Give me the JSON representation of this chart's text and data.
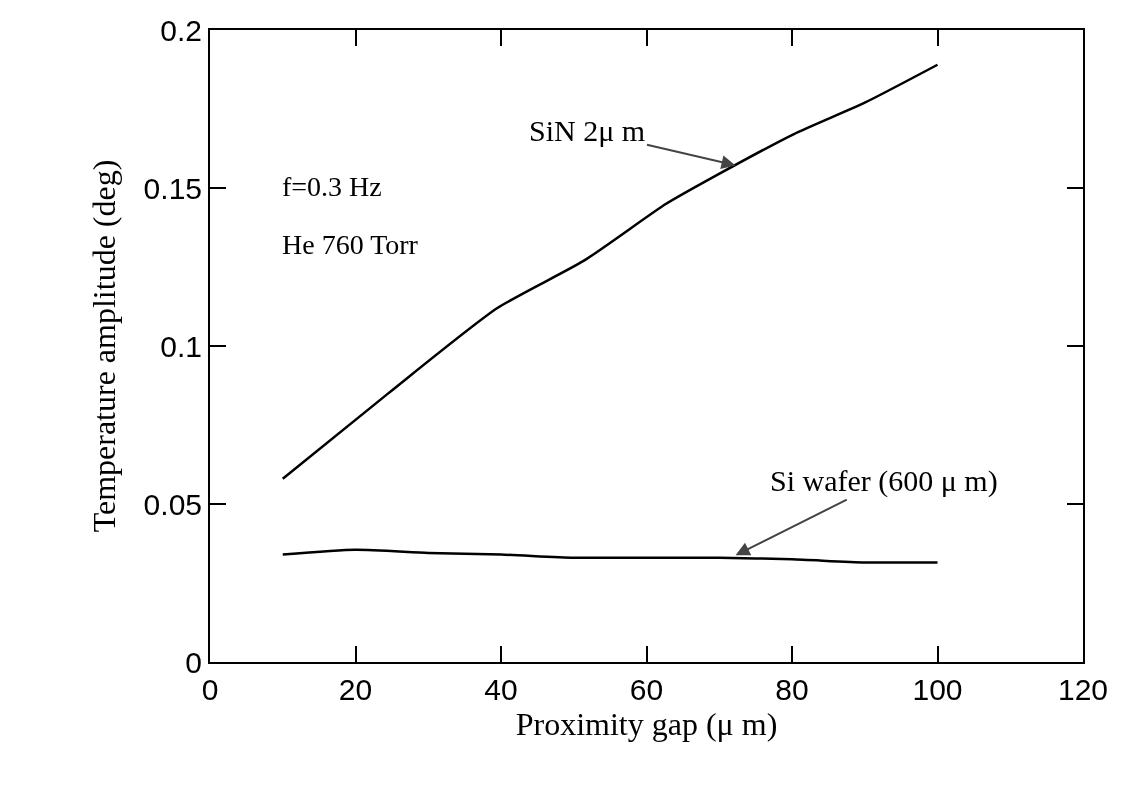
{
  "chart_data": {
    "type": "line",
    "xlabel": "Proximity gap (μ m)",
    "ylabel": "Temperature amplitude (deg)",
    "xlim": [
      0,
      120
    ],
    "xticks": [
      0,
      20,
      40,
      60,
      80,
      100,
      120
    ],
    "ylim": [
      0,
      0.2
    ],
    "yticks": [
      0,
      0.05,
      0.1,
      0.15,
      0.2
    ],
    "grid": false,
    "marker": "none",
    "line_style": "solid",
    "series": [
      {
        "color": "#000000",
        "x": [
          10,
          24.5,
          39.5,
          51.4,
          62.7,
          69.6,
          80.2,
          90,
          100
        ],
        "values": [
          0.058,
          0.085,
          0.112,
          0.127,
          0.145,
          0.154,
          0.167,
          0.177,
          0.189
        ]
      },
      {
        "color": "#000000",
        "x": [
          10,
          20,
          30,
          40,
          50,
          60,
          70,
          80,
          90,
          100
        ],
        "values": [
          0.034,
          0.0355,
          0.0345,
          0.034,
          0.033,
          0.033,
          0.033,
          0.0325,
          0.0315,
          0.0315
        ]
      }
    ],
    "annotations": [
      {
        "text": "SiN 2μ m",
        "x": 72.5,
        "y": 0.157
      },
      {
        "text": "Si wafer (600 μ m)",
        "x": 72,
        "y": 0.0335
      },
      "f=0.3 Hz",
      "He 760 Torr"
    ]
  }
}
